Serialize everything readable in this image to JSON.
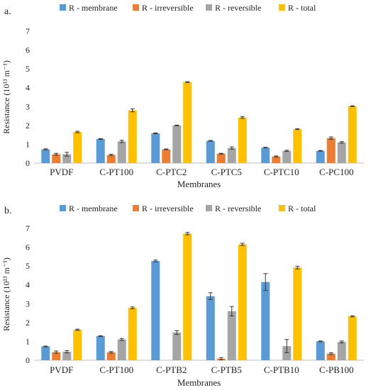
{
  "chart_data": [
    {
      "type": "bar",
      "panel_label": "a.",
      "categories": [
        "PVDF",
        "C-PT100",
        "C-PTC2",
        "C-PTC5",
        "C-PTC10",
        "C-PC100"
      ],
      "series": [
        {
          "name": "R - membrane",
          "values": [
            0.73,
            1.28,
            1.58,
            1.18,
            0.82,
            0.65
          ],
          "errors": [
            0.03,
            0.02,
            0.02,
            0.02,
            0.02,
            0.02
          ]
        },
        {
          "name": "R - irreversible",
          "values": [
            0.47,
            0.43,
            0.73,
            0.5,
            0.35,
            1.33
          ],
          "errors": [
            0.05,
            0.04,
            0.02,
            0.02,
            0.03,
            0.06
          ]
        },
        {
          "name": "R - reversible",
          "values": [
            0.47,
            1.15,
            2.0,
            0.8,
            0.65,
            1.1
          ],
          "errors": [
            0.1,
            0.06,
            0.02,
            0.06,
            0.03,
            0.04
          ]
        },
        {
          "name": "R - total",
          "values": [
            1.65,
            2.8,
            4.3,
            2.42,
            1.8,
            3.02
          ],
          "errors": [
            0.04,
            0.08,
            0.02,
            0.05,
            0.02,
            0.02
          ]
        }
      ],
      "ylim": [
        0,
        7
      ],
      "yticks": [
        0,
        1,
        2,
        3,
        4,
        5,
        6,
        7
      ],
      "xlabel": "Membranes",
      "ylabel": "Resistance (10¹³ m⁻¹)",
      "legend_position": "top",
      "grid": false
    },
    {
      "type": "bar",
      "panel_label": "b.",
      "categories": [
        "PVDF",
        "C-PT100",
        "C-PTB2",
        "C-PTB5",
        "C-PTB10",
        "C-PB100"
      ],
      "series": [
        {
          "name": "R - membrane",
          "values": [
            0.73,
            1.28,
            5.27,
            3.4,
            4.15,
            1.0
          ],
          "errors": [
            0.02,
            0.02,
            0.05,
            0.18,
            0.45,
            0.02
          ]
        },
        {
          "name": "R - irreversible",
          "values": [
            0.43,
            0.42,
            0.0,
            0.08,
            0.0,
            0.35
          ],
          "errors": [
            0.06,
            0.04,
            0.0,
            0.06,
            0.0,
            0.05
          ]
        },
        {
          "name": "R - reversible",
          "values": [
            0.45,
            1.1,
            1.47,
            2.6,
            0.75,
            0.97
          ],
          "errors": [
            0.06,
            0.05,
            0.1,
            0.25,
            0.35,
            0.05
          ]
        },
        {
          "name": "R - total",
          "values": [
            1.62,
            2.78,
            6.72,
            6.15,
            4.92,
            2.33
          ],
          "errors": [
            0.03,
            0.05,
            0.06,
            0.06,
            0.07,
            0.03
          ]
        }
      ],
      "ylim": [
        0,
        7
      ],
      "yticks": [
        0,
        1,
        2,
        3,
        4,
        5,
        6,
        7
      ],
      "xlabel": "Membranes",
      "ylabel": "Resistance (10¹³ m⁻¹)",
      "legend_position": "top",
      "grid": false
    }
  ],
  "colors": {
    "R - membrane": "#5b9bd5",
    "R - irreversible": "#ed7d31",
    "R - reversible": "#a5a5a5",
    "R - total": "#ffc000",
    "axis": "#bfbfbf",
    "text": "#222222"
  }
}
